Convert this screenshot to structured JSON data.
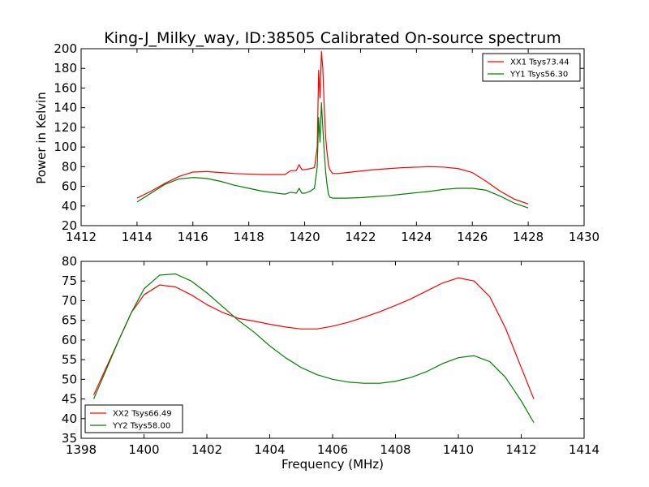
{
  "chart_data": [
    {
      "type": "line",
      "title": "King-J_Milky_way, ID:38505 Calibrated On-source spectrum",
      "xlabel": "",
      "ylabel": "Power in Kelvin",
      "xlim": [
        1412,
        1430
      ],
      "ylim": [
        20,
        200
      ],
      "xticks": [
        1412,
        1414,
        1416,
        1418,
        1420,
        1422,
        1424,
        1426,
        1428,
        1430
      ],
      "yticks": [
        20,
        40,
        60,
        80,
        100,
        120,
        140,
        160,
        180,
        200
      ],
      "legend": "top-right",
      "series": [
        {
          "name": "XX1 Tsys73.44",
          "color": "#ff0000",
          "x": [
            1414,
            1414.5,
            1415,
            1415.5,
            1416,
            1416.5,
            1417,
            1417.5,
            1418,
            1418.5,
            1419,
            1419.3,
            1419.5,
            1419.7,
            1419.8,
            1419.9,
            1420.0,
            1420.2,
            1420.35,
            1420.45,
            1420.5,
            1420.55,
            1420.6,
            1420.65,
            1420.7,
            1420.75,
            1420.8,
            1420.85,
            1420.9,
            1421.0,
            1421.2,
            1421.5,
            1422,
            1422.5,
            1423,
            1423.5,
            1424,
            1424.5,
            1425,
            1425.5,
            1426,
            1426.5,
            1427,
            1427.5,
            1428
          ],
          "y": [
            48,
            55,
            63,
            70,
            74.5,
            75,
            74,
            73,
            72.5,
            72,
            72,
            72,
            76,
            76,
            82,
            77,
            77,
            78,
            79,
            100,
            178,
            150,
            197,
            180,
            140,
            110,
            95,
            82,
            77,
            73,
            73,
            74,
            75.5,
            77,
            78,
            79,
            79.5,
            80,
            79.5,
            78,
            74,
            65,
            55,
            47,
            42
          ],
          "line_width": 1.2
        },
        {
          "name": "YY1 Tsys56.30",
          "color": "#008000",
          "x": [
            1414,
            1414.5,
            1415,
            1415.5,
            1416,
            1416.5,
            1417,
            1417.5,
            1418,
            1418.5,
            1419,
            1419.3,
            1419.5,
            1419.7,
            1419.8,
            1419.9,
            1420.0,
            1420.2,
            1420.35,
            1420.45,
            1420.5,
            1420.55,
            1420.6,
            1420.65,
            1420.7,
            1420.75,
            1420.8,
            1420.85,
            1420.9,
            1421.0,
            1421.2,
            1421.5,
            1422,
            1422.5,
            1423,
            1423.5,
            1424,
            1424.5,
            1425,
            1425.5,
            1426,
            1426.5,
            1427,
            1427.5,
            1428
          ],
          "y": [
            44,
            53,
            62,
            67.5,
            69,
            68,
            65,
            61,
            58,
            55,
            53,
            52,
            54,
            53,
            58,
            53,
            53,
            55,
            58,
            80,
            130,
            105,
            145,
            120,
            95,
            75,
            62,
            52,
            49,
            48,
            48,
            48,
            48.5,
            49.5,
            50.5,
            52,
            53.5,
            55,
            57,
            58,
            58,
            56,
            50,
            43,
            38
          ],
          "line_width": 1.2
        }
      ]
    },
    {
      "type": "line",
      "title": "",
      "xlabel": "Frequency (MHz)",
      "ylabel": "",
      "xlim": [
        1398,
        1414
      ],
      "ylim": [
        35,
        80
      ],
      "xticks": [
        1398,
        1400,
        1402,
        1404,
        1406,
        1408,
        1410,
        1412,
        1414
      ],
      "yticks": [
        35,
        40,
        45,
        50,
        55,
        60,
        65,
        70,
        75,
        80
      ],
      "legend": "bottom-left",
      "series": [
        {
          "name": "XX2 Tsys66.49",
          "color": "#ff0000",
          "x": [
            1398.4,
            1398.8,
            1399.2,
            1399.6,
            1400.0,
            1400.5,
            1401.0,
            1401.5,
            1402.0,
            1402.5,
            1403.0,
            1403.5,
            1404.0,
            1404.5,
            1405.0,
            1405.5,
            1406.0,
            1406.5,
            1407.0,
            1407.5,
            1408.0,
            1408.5,
            1409.0,
            1409.5,
            1410.0,
            1410.5,
            1411.0,
            1411.5,
            1412.0,
            1412.4
          ],
          "y": [
            46,
            53,
            60,
            67,
            71.5,
            74,
            73.5,
            71.5,
            69,
            67,
            65.5,
            64.8,
            64,
            63.3,
            62.8,
            62.8,
            63.5,
            64.5,
            65.8,
            67.2,
            68.8,
            70.5,
            72.5,
            74.5,
            75.8,
            75,
            71,
            63,
            53,
            45
          ],
          "line_width": 1.2
        },
        {
          "name": "YY2 Tsys58.00",
          "color": "#008000",
          "x": [
            1398.4,
            1398.8,
            1399.2,
            1399.6,
            1400.0,
            1400.5,
            1401.0,
            1401.5,
            1402.0,
            1402.5,
            1403.0,
            1403.5,
            1404.0,
            1404.5,
            1405.0,
            1405.5,
            1406.0,
            1406.5,
            1407.0,
            1407.5,
            1408.0,
            1408.5,
            1409.0,
            1409.5,
            1410.0,
            1410.5,
            1411.0,
            1411.5,
            1412.0,
            1412.4
          ],
          "y": [
            45,
            52.5,
            60,
            67,
            73,
            76.5,
            76.8,
            75,
            72,
            68.5,
            65,
            62,
            58.5,
            55.5,
            53,
            51.2,
            50,
            49.3,
            49,
            49,
            49.5,
            50.5,
            52,
            54,
            55.5,
            56,
            54.5,
            50.5,
            44.5,
            39
          ],
          "line_width": 1.2
        }
      ]
    }
  ]
}
